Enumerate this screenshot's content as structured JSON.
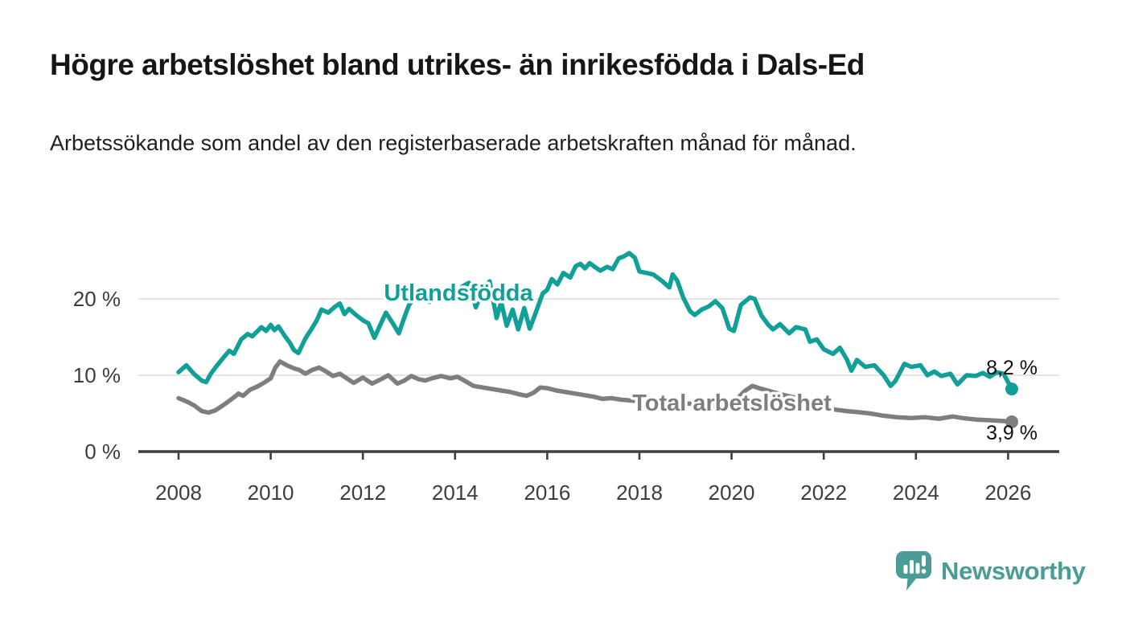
{
  "header": {
    "title": "Högre arbetslöshet bland utrikes- än inrikesfödda i Dals-Ed",
    "subtitle": "Arbetssökande som andel av den registerbaserade arbetskraften månad för månad."
  },
  "branding": {
    "logo_text": "Newsworthy",
    "logo_icon": "bar-chart-speech-bubble-icon",
    "brand_color": "#4a9c96"
  },
  "chart_data": {
    "type": "line",
    "title": "Högre arbetslöshet bland utrikes- än inrikesfödda i Dals-Ed",
    "subtitle": "Arbetssökande som andel av den registerbaserade arbetskraften månad för månad.",
    "xlabel": "",
    "ylabel": "",
    "grid": "horizontal",
    "legend_position": "inline-labels",
    "xlim": [
      2007.1,
      2027.1
    ],
    "ylim": [
      0,
      28
    ],
    "x_ticks": [
      {
        "value": 2008,
        "label": "2008"
      },
      {
        "value": 2010,
        "label": "2010"
      },
      {
        "value": 2012,
        "label": "2012"
      },
      {
        "value": 2014,
        "label": "2014"
      },
      {
        "value": 2016,
        "label": "2016"
      },
      {
        "value": 2018,
        "label": "2018"
      },
      {
        "value": 2020,
        "label": "2020"
      },
      {
        "value": 2022,
        "label": "2022"
      },
      {
        "value": 2024,
        "label": "2024"
      },
      {
        "value": 2026,
        "label": "2026"
      }
    ],
    "y_ticks": [
      {
        "value": 0,
        "label": "0 %",
        "gridline": false
      },
      {
        "value": 10,
        "label": "10 %",
        "gridline": true
      },
      {
        "value": 20,
        "label": "20 %",
        "gridline": true
      }
    ],
    "series": [
      {
        "name": "Total arbetslöshet",
        "color": "#7e7e7e",
        "end_label": "3,9 %",
        "end_value": 3.9,
        "points": [
          [
            2008.0,
            7.0
          ],
          [
            2008.2,
            6.5
          ],
          [
            2008.35,
            6.0
          ],
          [
            2008.5,
            5.3
          ],
          [
            2008.65,
            5.1
          ],
          [
            2008.8,
            5.4
          ],
          [
            2009.0,
            6.2
          ],
          [
            2009.2,
            7.1
          ],
          [
            2009.3,
            7.6
          ],
          [
            2009.4,
            7.3
          ],
          [
            2009.55,
            8.1
          ],
          [
            2009.7,
            8.5
          ],
          [
            2009.85,
            9.0
          ],
          [
            2010.0,
            9.6
          ],
          [
            2010.1,
            11.0
          ],
          [
            2010.2,
            11.8
          ],
          [
            2010.35,
            11.3
          ],
          [
            2010.5,
            10.9
          ],
          [
            2010.62,
            10.7
          ],
          [
            2010.75,
            10.2
          ],
          [
            2010.9,
            10.7
          ],
          [
            2011.05,
            11.0
          ],
          [
            2011.2,
            10.5
          ],
          [
            2011.35,
            9.9
          ],
          [
            2011.5,
            10.2
          ],
          [
            2011.65,
            9.6
          ],
          [
            2011.8,
            9.0
          ],
          [
            2012.0,
            9.7
          ],
          [
            2012.2,
            8.9
          ],
          [
            2012.4,
            9.5
          ],
          [
            2012.55,
            10.0
          ],
          [
            2012.75,
            8.9
          ],
          [
            2012.9,
            9.3
          ],
          [
            2013.05,
            9.9
          ],
          [
            2013.2,
            9.5
          ],
          [
            2013.35,
            9.3
          ],
          [
            2013.5,
            9.6
          ],
          [
            2013.7,
            9.9
          ],
          [
            2013.9,
            9.6
          ],
          [
            2014.05,
            9.8
          ],
          [
            2014.2,
            9.3
          ],
          [
            2014.4,
            8.6
          ],
          [
            2014.6,
            8.4
          ],
          [
            2014.8,
            8.2
          ],
          [
            2015.0,
            8.0
          ],
          [
            2015.2,
            7.8
          ],
          [
            2015.4,
            7.5
          ],
          [
            2015.55,
            7.3
          ],
          [
            2015.7,
            7.7
          ],
          [
            2015.85,
            8.4
          ],
          [
            2016.0,
            8.3
          ],
          [
            2016.2,
            8.0
          ],
          [
            2016.4,
            7.8
          ],
          [
            2016.6,
            7.6
          ],
          [
            2016.8,
            7.4
          ],
          [
            2017.0,
            7.2
          ],
          [
            2017.2,
            6.9
          ],
          [
            2017.4,
            7.0
          ],
          [
            2017.6,
            6.8
          ],
          [
            2017.8,
            6.7
          ],
          [
            2018.0,
            6.6
          ],
          [
            2018.3,
            6.5
          ],
          [
            2018.6,
            6.4
          ],
          [
            2019.0,
            6.3
          ],
          [
            2019.4,
            6.2
          ],
          [
            2019.8,
            6.0
          ],
          [
            2020.0,
            6.2
          ],
          [
            2020.3,
            8.0
          ],
          [
            2020.45,
            8.6
          ],
          [
            2020.6,
            8.3
          ],
          [
            2020.9,
            7.8
          ],
          [
            2021.2,
            7.3
          ],
          [
            2021.5,
            6.9
          ],
          [
            2021.8,
            6.3
          ],
          [
            2022.0,
            5.9
          ],
          [
            2022.25,
            5.5
          ],
          [
            2022.5,
            5.3
          ],
          [
            2022.7,
            5.2
          ],
          [
            2023.0,
            5.0
          ],
          [
            2023.3,
            4.7
          ],
          [
            2023.6,
            4.5
          ],
          [
            2023.9,
            4.4
          ],
          [
            2024.2,
            4.5
          ],
          [
            2024.5,
            4.3
          ],
          [
            2024.8,
            4.6
          ],
          [
            2025.0,
            4.4
          ],
          [
            2025.3,
            4.2
          ],
          [
            2025.6,
            4.1
          ],
          [
            2025.9,
            4.0
          ],
          [
            2026.08,
            3.9
          ]
        ]
      },
      {
        "name": "Utlandsfödda",
        "color": "#11a097",
        "end_label": "8,2 %",
        "end_value": 8.2,
        "points": [
          [
            2008.0,
            10.4
          ],
          [
            2008.17,
            11.3
          ],
          [
            2008.33,
            10.2
          ],
          [
            2008.5,
            9.3
          ],
          [
            2008.6,
            9.1
          ],
          [
            2008.7,
            10.2
          ],
          [
            2008.85,
            11.4
          ],
          [
            2009.0,
            12.5
          ],
          [
            2009.1,
            13.2
          ],
          [
            2009.2,
            12.8
          ],
          [
            2009.36,
            14.7
          ],
          [
            2009.5,
            15.4
          ],
          [
            2009.6,
            15.1
          ],
          [
            2009.8,
            16.3
          ],
          [
            2009.9,
            15.8
          ],
          [
            2010.0,
            16.6
          ],
          [
            2010.08,
            15.9
          ],
          [
            2010.17,
            16.4
          ],
          [
            2010.3,
            15.2
          ],
          [
            2010.42,
            14.2
          ],
          [
            2010.5,
            13.3
          ],
          [
            2010.6,
            12.9
          ],
          [
            2010.75,
            14.8
          ],
          [
            2010.9,
            16.2
          ],
          [
            2011.0,
            17.2
          ],
          [
            2011.1,
            18.6
          ],
          [
            2011.25,
            18.2
          ],
          [
            2011.4,
            19.0
          ],
          [
            2011.5,
            19.4
          ],
          [
            2011.6,
            18.0
          ],
          [
            2011.7,
            18.7
          ],
          [
            2011.85,
            17.9
          ],
          [
            2012.0,
            17.2
          ],
          [
            2012.12,
            16.8
          ],
          [
            2012.25,
            14.9
          ],
          [
            2012.4,
            16.9
          ],
          [
            2012.5,
            18.2
          ],
          [
            2012.65,
            16.8
          ],
          [
            2012.78,
            15.5
          ],
          [
            2012.9,
            17.6
          ],
          [
            2013.0,
            19.2
          ],
          [
            2013.15,
            20.4
          ],
          [
            2013.3,
            20.7
          ],
          [
            2013.45,
            19.6
          ],
          [
            2013.55,
            20.3
          ],
          [
            2013.7,
            19.8
          ],
          [
            2013.85,
            21.0
          ],
          [
            2014.0,
            20.6
          ],
          [
            2014.15,
            21.6
          ],
          [
            2014.3,
            22.1
          ],
          [
            2014.45,
            18.9
          ],
          [
            2014.6,
            21.2
          ],
          [
            2014.75,
            22.3
          ],
          [
            2014.9,
            17.5
          ],
          [
            2015.0,
            19.6
          ],
          [
            2015.12,
            16.5
          ],
          [
            2015.25,
            18.6
          ],
          [
            2015.37,
            16.0
          ],
          [
            2015.5,
            18.8
          ],
          [
            2015.62,
            16.1
          ],
          [
            2015.75,
            18.2
          ],
          [
            2015.9,
            20.7
          ],
          [
            2016.0,
            21.2
          ],
          [
            2016.1,
            22.6
          ],
          [
            2016.22,
            21.9
          ],
          [
            2016.35,
            23.4
          ],
          [
            2016.5,
            22.8
          ],
          [
            2016.62,
            24.3
          ],
          [
            2016.72,
            24.6
          ],
          [
            2016.82,
            24.0
          ],
          [
            2016.92,
            24.7
          ],
          [
            2017.05,
            24.1
          ],
          [
            2017.15,
            23.7
          ],
          [
            2017.3,
            24.2
          ],
          [
            2017.42,
            23.9
          ],
          [
            2017.55,
            25.3
          ],
          [
            2017.67,
            25.6
          ],
          [
            2017.78,
            26.0
          ],
          [
            2017.9,
            25.4
          ],
          [
            2018.0,
            23.6
          ],
          [
            2018.15,
            23.4
          ],
          [
            2018.3,
            23.2
          ],
          [
            2018.5,
            22.3
          ],
          [
            2018.65,
            21.5
          ],
          [
            2018.72,
            23.2
          ],
          [
            2018.82,
            22.4
          ],
          [
            2018.95,
            20.2
          ],
          [
            2019.1,
            18.4
          ],
          [
            2019.2,
            17.9
          ],
          [
            2019.35,
            18.6
          ],
          [
            2019.5,
            19.0
          ],
          [
            2019.65,
            19.7
          ],
          [
            2019.8,
            18.8
          ],
          [
            2019.95,
            16.1
          ],
          [
            2020.05,
            15.8
          ],
          [
            2020.2,
            19.2
          ],
          [
            2020.4,
            20.2
          ],
          [
            2020.5,
            20.0
          ],
          [
            2020.65,
            17.8
          ],
          [
            2020.8,
            16.6
          ],
          [
            2020.9,
            16.0
          ],
          [
            2021.05,
            16.7
          ],
          [
            2021.25,
            15.5
          ],
          [
            2021.4,
            16.3
          ],
          [
            2021.6,
            16.0
          ],
          [
            2021.7,
            14.4
          ],
          [
            2021.85,
            14.7
          ],
          [
            2022.0,
            13.4
          ],
          [
            2022.2,
            12.8
          ],
          [
            2022.35,
            13.6
          ],
          [
            2022.5,
            12.1
          ],
          [
            2022.6,
            10.6
          ],
          [
            2022.72,
            12.0
          ],
          [
            2022.9,
            11.1
          ],
          [
            2023.1,
            11.3
          ],
          [
            2023.3,
            10.0
          ],
          [
            2023.45,
            8.6
          ],
          [
            2023.55,
            9.2
          ],
          [
            2023.75,
            11.5
          ],
          [
            2023.9,
            11.1
          ],
          [
            2024.1,
            11.3
          ],
          [
            2024.25,
            10.0
          ],
          [
            2024.4,
            10.5
          ],
          [
            2024.55,
            9.9
          ],
          [
            2024.75,
            10.2
          ],
          [
            2024.9,
            8.8
          ],
          [
            2025.1,
            10.0
          ],
          [
            2025.3,
            9.9
          ],
          [
            2025.45,
            10.3
          ],
          [
            2025.6,
            9.8
          ],
          [
            2025.75,
            10.4
          ],
          [
            2025.9,
            10.2
          ],
          [
            2026.08,
            8.2
          ]
        ]
      }
    ]
  }
}
